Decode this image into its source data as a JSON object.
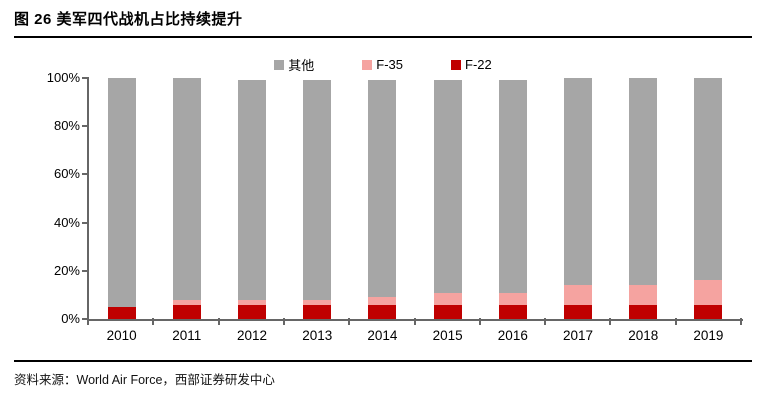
{
  "figure": {
    "title": "图 26 美军四代战机占比持续提升",
    "source": "资料来源：World Air Force，西部证券研发中心"
  },
  "chart_data": {
    "type": "bar",
    "stacked": true,
    "title": "美军四代战机占比持续提升",
    "xlabel": "",
    "ylabel": "",
    "ylim": [
      0,
      100
    ],
    "grid": false,
    "legend_position": "top",
    "legend_order": [
      "其他",
      "F-35",
      "F-22"
    ],
    "categories": [
      "2010",
      "2011",
      "2012",
      "2013",
      "2014",
      "2015",
      "2016",
      "2017",
      "2018",
      "2019"
    ],
    "series": [
      {
        "name": "F-22",
        "color": "#C00000",
        "values": [
          5,
          6,
          6,
          6,
          6,
          6,
          6,
          6,
          6,
          6
        ]
      },
      {
        "name": "F-35",
        "color": "#F5A3A0",
        "values": [
          0,
          2,
          2,
          2,
          3,
          5,
          5,
          8,
          8,
          10
        ]
      },
      {
        "name": "其他",
        "color": "#A6A6A6",
        "values": [
          95,
          92,
          91,
          91,
          90,
          88,
          88,
          86,
          86,
          84
        ]
      }
    ],
    "yticks": [
      {
        "label": "0%",
        "value": 0
      },
      {
        "label": "20%",
        "value": 20
      },
      {
        "label": "40%",
        "value": 40
      },
      {
        "label": "60%",
        "value": 60
      },
      {
        "label": "80%",
        "value": 80
      },
      {
        "label": "100%",
        "value": 100
      }
    ],
    "axis_color": "#666666"
  }
}
